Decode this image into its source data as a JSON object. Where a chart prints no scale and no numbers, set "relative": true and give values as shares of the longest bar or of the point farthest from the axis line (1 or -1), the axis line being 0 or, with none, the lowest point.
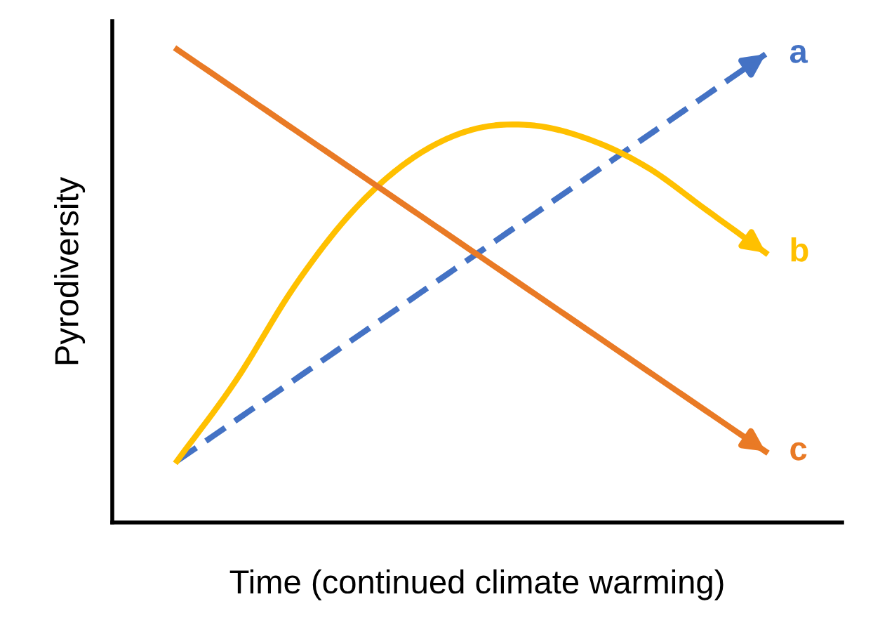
{
  "chart_data": {
    "type": "line",
    "relative": true,
    "xlabel": "Time (continued climate warming)",
    "ylabel": "Pyrodiversity",
    "categories": [
      null,
      null,
      null,
      null,
      null,
      null,
      null,
      null,
      null,
      null,
      null
    ],
    "tick_labels": false,
    "grid": false,
    "legend": "right",
    "marker": "none",
    "series": [
      {
        "name": "a",
        "color": "#4472c4",
        "line_style": "dashed",
        "values": [
          0.13,
          0.216,
          0.302,
          0.388,
          0.474,
          0.56,
          0.646,
          0.732,
          0.818,
          0.904,
          0.99
        ]
      },
      {
        "name": "b",
        "color": "#ffc000",
        "line_style": "solid",
        "values": [
          0.13,
          0.3,
          0.5,
          0.66,
          0.77,
          0.83,
          0.84,
          0.81,
          0.75,
          0.66,
          0.57
        ]
      },
      {
        "name": "c",
        "color": "#e97a25",
        "line_style": "solid",
        "values": [
          1,
          0.915,
          0.83,
          0.745,
          0.66,
          0.575,
          0.49,
          0.405,
          0.32,
          0.235,
          0.15
        ]
      }
    ]
  }
}
